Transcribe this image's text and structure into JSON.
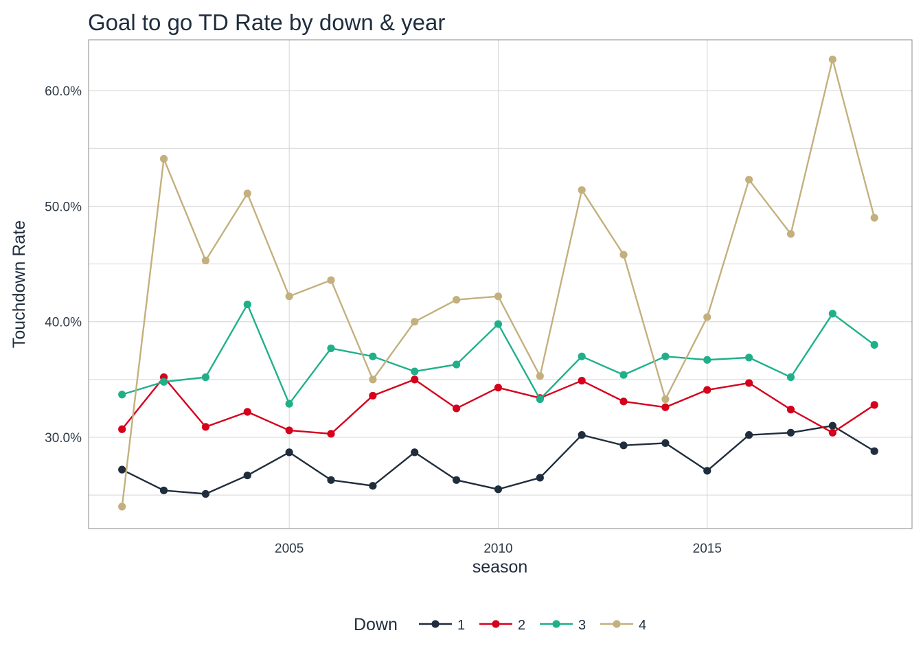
{
  "chart_data": {
    "type": "line",
    "title": "Goal to go TD Rate by down & year",
    "xlabel": "season",
    "ylabel": "Touchdown Rate",
    "x": [
      2001,
      2002,
      2003,
      2004,
      2005,
      2006,
      2007,
      2008,
      2009,
      2010,
      2011,
      2012,
      2013,
      2014,
      2015,
      2016,
      2017,
      2018,
      2019
    ],
    "xlim": [
      2000.2,
      2019.9
    ],
    "ylim": [
      0.221,
      0.644
    ],
    "x_ticks": [
      2005,
      2010,
      2015
    ],
    "x_tick_labels": [
      "2005",
      "2010",
      "2015"
    ],
    "y_ticks": [
      0.3,
      0.4,
      0.5,
      0.6
    ],
    "y_tick_labels": [
      "30.0%",
      "40.0%",
      "50.0%",
      "60.0%"
    ],
    "y_minor_ticks": [
      0.25,
      0.35,
      0.45,
      0.55
    ],
    "grid": true,
    "legend": {
      "title": "Down",
      "position": "bottom"
    },
    "series": [
      {
        "name": "1",
        "color": "#1f2d3d",
        "values": [
          0.272,
          0.254,
          0.251,
          0.267,
          0.287,
          0.263,
          0.258,
          0.287,
          0.263,
          0.255,
          0.265,
          0.302,
          0.293,
          0.295,
          0.271,
          0.302,
          0.304,
          0.31,
          0.288
        ]
      },
      {
        "name": "2",
        "color": "#d6001c",
        "values": [
          0.307,
          0.352,
          0.309,
          0.322,
          0.306,
          0.303,
          0.336,
          0.35,
          0.325,
          0.343,
          0.334,
          0.349,
          0.331,
          0.326,
          0.341,
          0.347,
          0.324,
          0.304,
          0.328
        ]
      },
      {
        "name": "3",
        "color": "#1fb08a",
        "values": [
          0.337,
          0.348,
          0.352,
          0.415,
          0.329,
          0.377,
          0.37,
          0.357,
          0.363,
          0.398,
          0.333,
          0.37,
          0.354,
          0.37,
          0.367,
          0.369,
          0.352,
          0.407,
          0.38
        ]
      },
      {
        "name": "4",
        "color": "#c4b07e",
        "values": [
          0.24,
          0.541,
          0.453,
          0.511,
          0.422,
          0.436,
          0.35,
          0.4,
          0.419,
          0.422,
          0.353,
          0.514,
          0.458,
          0.333,
          0.404,
          0.523,
          0.476,
          0.627,
          0.49
        ]
      }
    ]
  }
}
